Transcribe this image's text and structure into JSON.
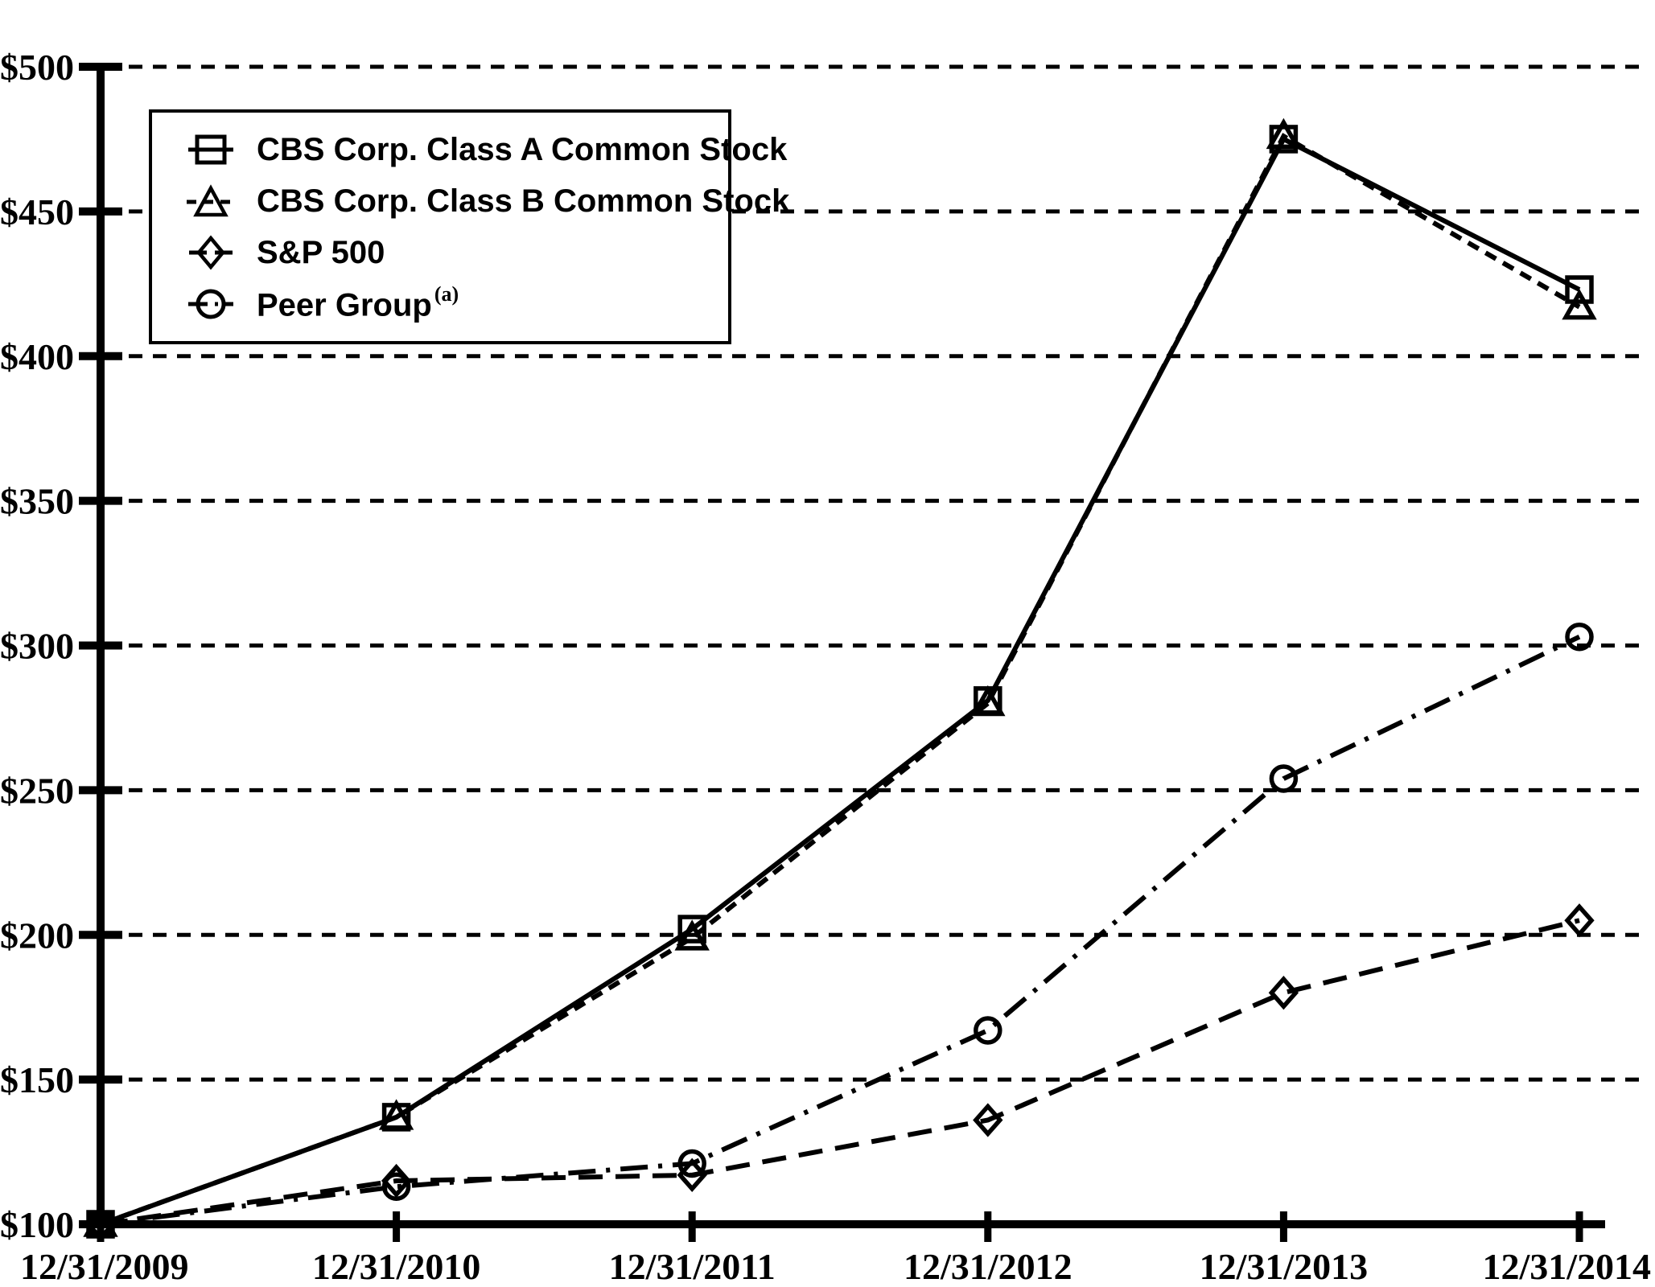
{
  "chart_data": {
    "type": "line",
    "title": "",
    "x_categories": [
      "12/31/2009",
      "12/31/2010",
      "12/31/2011",
      "12/31/2012",
      "12/31/2013",
      "12/31/2014"
    ],
    "y_axis": {
      "min": 100,
      "max": 500,
      "step": 50,
      "prefix": "$",
      "tick_labels": [
        "$100",
        "$150",
        "$200",
        "$250",
        "$300",
        "$350",
        "$400",
        "$450",
        "$500"
      ]
    },
    "grid": "horizontal-dashed",
    "legend_position": "top-left",
    "colors": {
      "foreground": "#000000",
      "background": "#ffffff"
    },
    "series": [
      {
        "name": "CBS Corp. Class A Common Stock",
        "marker": "square",
        "line": "solid",
        "values": [
          100,
          137,
          202,
          281,
          475,
          423
        ]
      },
      {
        "name": "CBS Corp. Class B Common Stock",
        "marker": "triangle",
        "line": "dashed",
        "values": [
          100,
          137,
          199,
          280,
          476,
          417
        ]
      },
      {
        "name": "S&P 500",
        "marker": "diamond",
        "line": "long-dash",
        "values": [
          100,
          115,
          117,
          136,
          180,
          205
        ]
      },
      {
        "name": "Peer Group",
        "name_superscript": "(a)",
        "marker": "circle",
        "line": "dash-dot",
        "values": [
          100,
          113,
          121,
          167,
          254,
          303
        ]
      }
    ]
  }
}
